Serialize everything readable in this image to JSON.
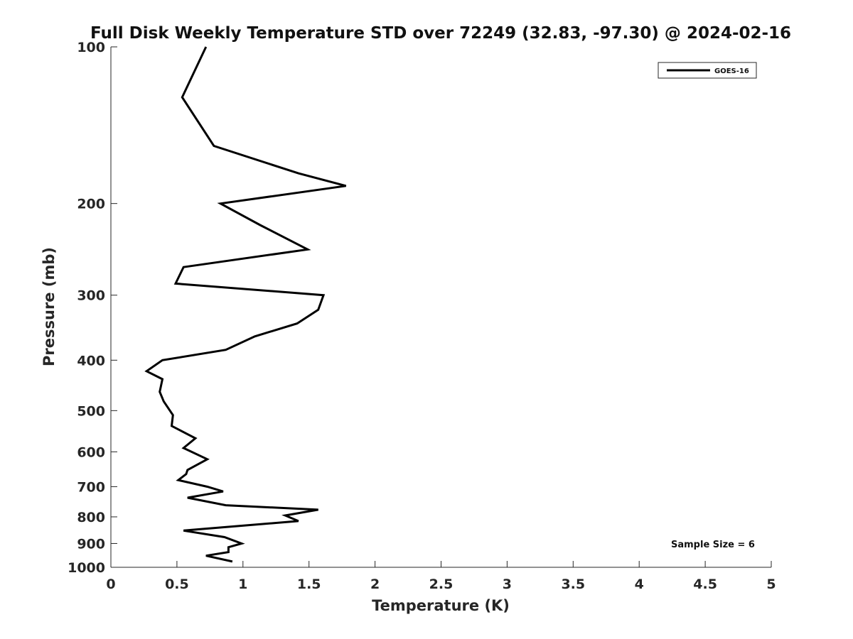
{
  "chart_data": {
    "type": "line",
    "title": "Full Disk Weekly Temperature STD over 72249 (32.83, -97.30) @ 2024-02-16",
    "xlabel": "Temperature (K)",
    "ylabel": "Pressure (mb)",
    "xlim": [
      0,
      5
    ],
    "ylim": [
      100,
      1000
    ],
    "y_scale": "log",
    "y_reversed": true,
    "grid": false,
    "legend_position": "top-right",
    "x_ticks": [
      "0",
      "0.5",
      "1",
      "1.5",
      "2",
      "2.5",
      "3",
      "3.5",
      "4",
      "4.5",
      "5"
    ],
    "y_ticks": [
      "100",
      "200",
      "300",
      "400",
      "500",
      "600",
      "700",
      "800",
      "900",
      "1000"
    ],
    "series": [
      {
        "name": "GOES-16",
        "color": "#000000",
        "points": [
          [
            0.72,
            100
          ],
          [
            0.54,
            125
          ],
          [
            0.78,
            155
          ],
          [
            1.42,
            175
          ],
          [
            1.78,
            185
          ],
          [
            0.83,
            200
          ],
          [
            1.13,
            220
          ],
          [
            1.49,
            245
          ],
          [
            0.55,
            265
          ],
          [
            0.49,
            285
          ],
          [
            1.61,
            300
          ],
          [
            1.57,
            320
          ],
          [
            1.41,
            340
          ],
          [
            1.09,
            360
          ],
          [
            0.87,
            382
          ],
          [
            0.39,
            400
          ],
          [
            0.27,
            420
          ],
          [
            0.39,
            435
          ],
          [
            0.37,
            460
          ],
          [
            0.4,
            480
          ],
          [
            0.47,
            510
          ],
          [
            0.46,
            535
          ],
          [
            0.64,
            565
          ],
          [
            0.55,
            590
          ],
          [
            0.73,
            620
          ],
          [
            0.58,
            650
          ],
          [
            0.57,
            662
          ],
          [
            0.51,
            680
          ],
          [
            0.73,
            700
          ],
          [
            0.85,
            715
          ],
          [
            0.58,
            735
          ],
          [
            0.87,
            760
          ],
          [
            1.57,
            775
          ],
          [
            1.32,
            795
          ],
          [
            1.42,
            815
          ],
          [
            0.55,
            850
          ],
          [
            0.86,
            875
          ],
          [
            0.99,
            900
          ],
          [
            0.89,
            915
          ],
          [
            0.89,
            935
          ],
          [
            0.72,
            950
          ],
          [
            0.92,
            975
          ]
        ]
      }
    ],
    "annotation": "Sample Size = 6"
  }
}
